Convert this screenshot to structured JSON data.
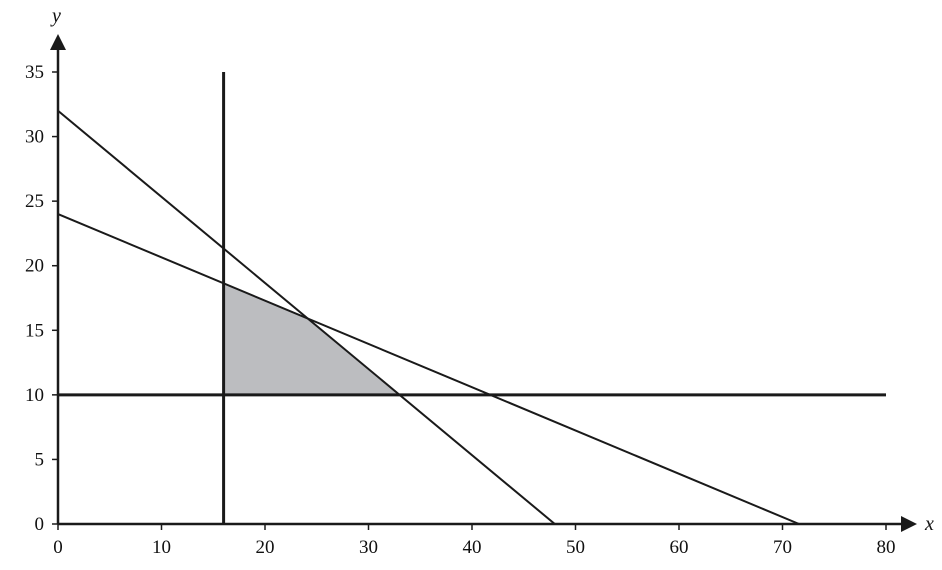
{
  "chart_data": {
    "type": "line",
    "xlabel": "x",
    "ylabel": "y",
    "xlim": [
      0,
      80
    ],
    "ylim": [
      0,
      35
    ],
    "x_ticks": [
      0,
      10,
      20,
      30,
      40,
      50,
      60,
      70,
      80
    ],
    "y_ticks": [
      0,
      5,
      10,
      15,
      20,
      25,
      30,
      35
    ],
    "grid": false,
    "legend": "none",
    "lines": [
      {
        "points": [
          [
            16,
            0
          ],
          [
            16,
            35
          ]
        ]
      },
      {
        "points": [
          [
            0,
            10
          ],
          [
            80,
            10
          ]
        ]
      },
      {
        "points": [
          [
            0,
            32
          ],
          [
            48,
            0
          ]
        ]
      },
      {
        "points": [
          [
            0,
            24
          ],
          [
            71.6,
            0
          ]
        ]
      }
    ],
    "shaded_region": {
      "vertices": [
        [
          16,
          10
        ],
        [
          16,
          18.6
        ],
        [
          24,
          16
        ],
        [
          33,
          10
        ]
      ],
      "color": "#bcbdc0"
    },
    "line_color": "#1a1a1a"
  }
}
